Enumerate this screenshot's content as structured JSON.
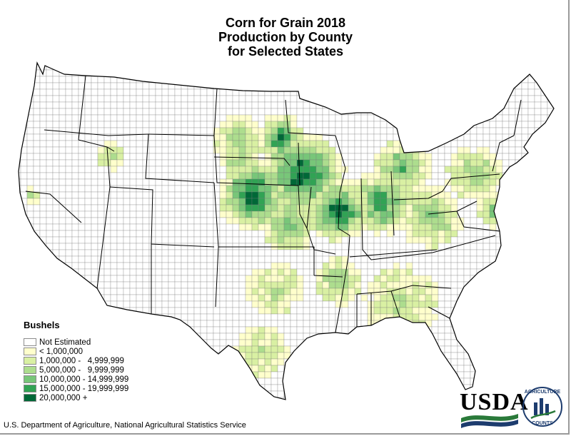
{
  "title": {
    "line1": "Corn for Grain 2018",
    "line2": "Production by County",
    "line3": "for Selected States"
  },
  "legend": {
    "title": "Bushels",
    "items": [
      {
        "label": "Not Estimated",
        "color": "#ffffff"
      },
      {
        "label": "< 1,000,000",
        "color": "#ffffcc"
      },
      {
        "label": "1,000,000 -   4,999,999",
        "color": "#d9f0a3"
      },
      {
        "label": "5,000,000 -   9,999,999",
        "color": "#addd8e"
      },
      {
        "label": "10,000,000 - 14,999,999",
        "color": "#78c679"
      },
      {
        "label": "15,000,000 - 19,999,999",
        "color": "#31a354"
      },
      {
        "label": "20,000,000 +",
        "color": "#006837"
      }
    ]
  },
  "source": "U.S. Department of Agriculture, National Agricultural Statistics Service",
  "logo": {
    "usda": "USDA",
    "arc_text": "AGRICULTURE",
    "counts": "COUNTS"
  }
}
